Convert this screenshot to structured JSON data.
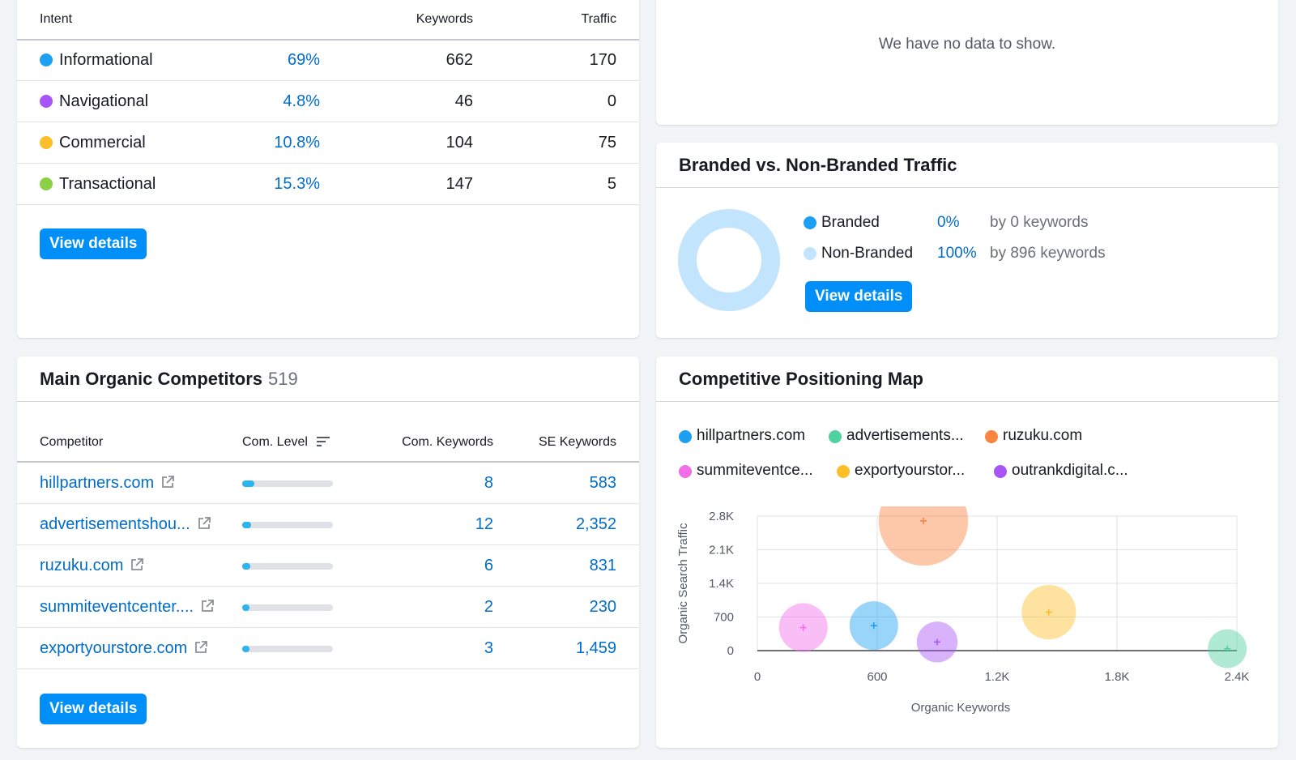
{
  "intent": {
    "headers": {
      "intent": "Intent",
      "keywords": "Keywords",
      "traffic": "Traffic"
    },
    "rows": [
      {
        "name": "Informational",
        "pct": "69%",
        "keywords": "662",
        "traffic": "170",
        "color": "#1da0f2"
      },
      {
        "name": "Navigational",
        "pct": "4.8%",
        "keywords": "46",
        "traffic": "0",
        "color": "#a855f7"
      },
      {
        "name": "Commercial",
        "pct": "10.8%",
        "keywords": "104",
        "traffic": "75",
        "color": "#fcbf2a"
      },
      {
        "name": "Transactional",
        "pct": "15.3%",
        "keywords": "147",
        "traffic": "5",
        "color": "#8bd145"
      }
    ],
    "button": "View details"
  },
  "top_right": {
    "message": "We have no data to show."
  },
  "branded": {
    "title": "Branded vs. Non-Branded Traffic",
    "rows": [
      {
        "label": "Branded",
        "pct": "0%",
        "by": "by 0 keywords",
        "color": "#1da0f2"
      },
      {
        "label": "Non-Branded",
        "pct": "100%",
        "by": "by 896 keywords",
        "color": "#c2e4fd"
      }
    ],
    "button": "View details"
  },
  "competitors": {
    "title": "Main Organic Competitors",
    "count": "519",
    "headers": {
      "competitor": "Competitor",
      "level": "Com. Level",
      "com_keywords": "Com. Keywords",
      "se_keywords": "SE Keywords"
    },
    "rows": [
      {
        "domain": "hillpartners.com",
        "level": 0.13,
        "com_keywords": "8",
        "se_keywords": "583"
      },
      {
        "domain": "advertisementshou...",
        "level": 0.1,
        "com_keywords": "12",
        "se_keywords": "2,352"
      },
      {
        "domain": "ruzuku.com",
        "level": 0.09,
        "com_keywords": "6",
        "se_keywords": "831"
      },
      {
        "domain": "summiteventcenter....",
        "level": 0.08,
        "com_keywords": "2",
        "se_keywords": "230"
      },
      {
        "domain": "exportyourstore.com",
        "level": 0.08,
        "com_keywords": "3",
        "se_keywords": "1,459"
      }
    ],
    "button": "View details"
  },
  "positioning": {
    "title": "Competitive Positioning Map",
    "legend": [
      {
        "label": "hillpartners.com",
        "color": "#1da0f2"
      },
      {
        "label": "advertisements...",
        "color": "#4fd1a0"
      },
      {
        "label": "ruzuku.com",
        "color": "#fb8440"
      },
      {
        "label": "summiteventce...",
        "color": "#f26ee8"
      },
      {
        "label": "exportyourstor...",
        "color": "#fcbf2a"
      },
      {
        "label": "outrankdigital.c...",
        "color": "#a855f7"
      }
    ]
  },
  "chart_data": {
    "type": "scatter",
    "title": "Competitive Positioning Map",
    "xlabel": "Organic Keywords",
    "ylabel": "Organic Search Traffic",
    "xlim": [
      0,
      2400
    ],
    "ylim": [
      0,
      2800
    ],
    "x_ticks": [
      "0",
      "600",
      "1.2K",
      "1.8K",
      "2.4K"
    ],
    "y_ticks": [
      "0",
      "700",
      "1.4K",
      "2.1K",
      "2.8K"
    ],
    "series": [
      {
        "name": "hillpartners.com",
        "x": 583,
        "y": 520,
        "size": 0.3,
        "color": "#1da0f2"
      },
      {
        "name": "advertisements...",
        "x": 2352,
        "y": 40,
        "size": 0.2,
        "color": "#4fd1a0"
      },
      {
        "name": "ruzuku.com",
        "x": 831,
        "y": 2700,
        "size": 0.72,
        "color": "#fb8440"
      },
      {
        "name": "summiteventce...",
        "x": 230,
        "y": 480,
        "size": 0.3,
        "color": "#f26ee8"
      },
      {
        "name": "exportyourstor...",
        "x": 1459,
        "y": 800,
        "size": 0.36,
        "color": "#fcbf2a"
      },
      {
        "name": "outrankdigital.c...",
        "x": 900,
        "y": 180,
        "size": 0.22,
        "color": "#a855f7"
      }
    ]
  }
}
